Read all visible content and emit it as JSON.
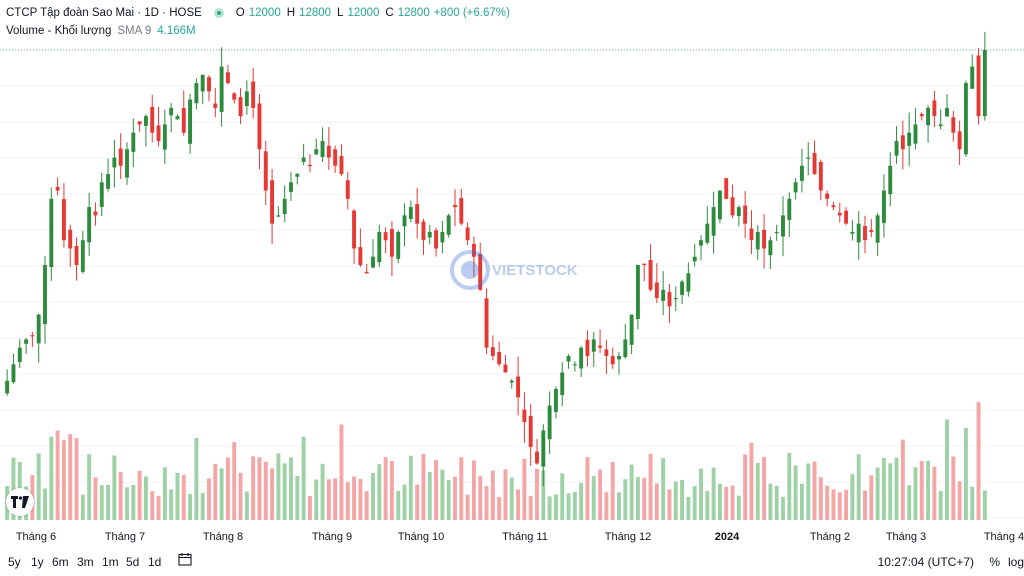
{
  "header": {
    "symbol_title": "CTCP Tập đoàn Sao Mai · 1D · HOSE",
    "o_label": "O",
    "o_value": "12000",
    "h_label": "H",
    "h_value": "12800",
    "l_label": "L",
    "l_value": "12000",
    "c_label": "C",
    "c_value": "12800",
    "change": "+800 (+6.67%)"
  },
  "volume_legend": {
    "title": "Volume - Khối lượng",
    "sma_label": "SMA 9",
    "sma_value": "4.166M"
  },
  "toolbar": {
    "ranges": [
      "5y",
      "1y",
      "6m",
      "3m",
      "1m",
      "5d",
      "1d"
    ],
    "time": "10:27:04 (UTC+7)",
    "percent_label": "%",
    "log_label": "log"
  },
  "watermark_text": "VIETSTOCK",
  "colors": {
    "up": "#26a69a",
    "down": "#ef5350",
    "up_volume": "#9fd1a6",
    "down_volume": "#f4a5a5",
    "up_candle": "#2e8b3e",
    "down_candle": "#e53935"
  },
  "chart_data": {
    "type": "candlestick",
    "interval": "1D",
    "x_tick_labels": [
      "Tháng 6",
      "Tháng 7",
      "Tháng 8",
      "Tháng 9",
      "Tháng 10",
      "Tháng 11",
      "Tháng 12",
      "2024",
      "Tháng 2",
      "Tháng 3",
      "Tháng 4"
    ],
    "close_price_estimates": [
      8800,
      9000,
      9200,
      9300,
      9350,
      9600,
      10200,
      11000,
      11100,
      10500,
      10400,
      10200,
      10500,
      10900,
      10800,
      11200,
      11300,
      11500,
      11400,
      11600,
      11800,
      11900,
      12000,
      11800,
      11700,
      11900,
      12100,
      12000,
      11800,
      12200,
      12400,
      12500,
      12300,
      12100,
      12600,
      12400,
      12200,
      12000,
      12300,
      12100,
      11600,
      11100,
      10700,
      10800,
      11000,
      11200,
      11300,
      11500,
      11400,
      11600,
      11700,
      11500,
      11400,
      11300,
      11000,
      10400,
      10200,
      10100,
      10300,
      10600,
      10500,
      10300,
      10600,
      10800,
      10900,
      10700,
      10500,
      10600,
      10400,
      10600,
      10800,
      10900,
      10700,
      10500,
      10300,
      9900,
      9200,
      9100,
      9000,
      8900,
      8800,
      8600,
      8300,
      8000,
      7800,
      8200,
      8500,
      8700,
      8900,
      9100,
      9000,
      9200,
      9100,
      9300,
      9200,
      9100,
      9000,
      9100,
      9300,
      9600,
      10200,
      10200,
      9900,
      9800,
      9900,
      9700,
      9800,
      10000,
      10100,
      10300,
      10500,
      10700,
      10900,
      11100,
      11000,
      10800,
      10900,
      10700,
      10500,
      10600,
      10400,
      10500,
      10600,
      10800,
      11000,
      11200,
      11400,
      11500,
      11300,
      11100,
      11000,
      10900,
      10800,
      10700,
      10600,
      10700,
      10500,
      10600,
      10800,
      11100,
      11400,
      11700,
      11600,
      11800,
      11900,
      12000,
      12100,
      12000,
      11900,
      12100,
      11800,
      11600,
      12400,
      12600,
      12000,
      12800
    ]
  }
}
